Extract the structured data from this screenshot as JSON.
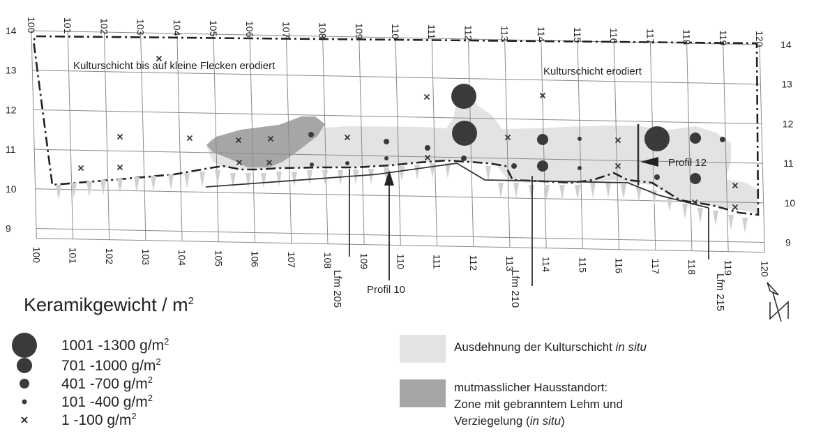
{
  "grid": {
    "top_labels": [
      "100",
      "101",
      "102",
      "103",
      "104",
      "105",
      "106",
      "107",
      "108",
      "109",
      "110",
      "111",
      "112",
      "113",
      "114",
      "115",
      "116",
      "117",
      "118",
      "119",
      "120"
    ],
    "bottom_labels": [
      "100",
      "101",
      "102",
      "103",
      "104",
      "105",
      "106",
      "107",
      "108",
      "109",
      "110",
      "111",
      "112",
      "113",
      "114",
      "115",
      "116",
      "117",
      "118",
      "119",
      "120"
    ],
    "left_labels": [
      "14",
      "13",
      "12",
      "11",
      "10",
      "9"
    ],
    "right_labels": [
      "14",
      "13",
      "12",
      "11",
      "10",
      "9"
    ]
  },
  "annotations": {
    "eroded_spots": "Kulturschicht bis auf kleine Flecken erodiert",
    "eroded": "Kulturschicht erodiert",
    "profil12": "Profil 12",
    "profil10": "Profil 10",
    "lfm205": "Lfm 205",
    "lfm210": "Lfm 210",
    "lfm215": "Lfm 215"
  },
  "legend": {
    "title": "Keramikgewicht / m",
    "title_sup": "2",
    "classes": [
      {
        "label": "1001 -1300 g/m",
        "sup": "2",
        "symbol": "circle-xl"
      },
      {
        "label": "701 -1000 g/m",
        "sup": "2",
        "symbol": "circle-l"
      },
      {
        "label": "401 -700 g/m",
        "sup": "2",
        "symbol": "circle-m"
      },
      {
        "label": "101 -400 g/m",
        "sup": "2",
        "symbol": "circle-s"
      },
      {
        "label": "1 -100 g/m",
        "sup": "2",
        "symbol": "cross"
      }
    ],
    "areas": [
      {
        "text_plain": "Ausdehnung der Kulturschicht ",
        "text_italic": "in situ",
        "color": "#e3e3e3"
      },
      {
        "line1": "mutmasslicher Hausstandort:",
        "line2": "Zone mit gebranntem Lehm und",
        "line3_plain": "Verziegelung (",
        "line3_italic": "in situ",
        "line3_end": ")",
        "color": "#a6a6a6"
      }
    ]
  },
  "colors": {
    "culture_layer": "#e3e3e3",
    "house_zone": "#a6a6a6",
    "symbol": "#3a3a3a",
    "grid": "#8a8a8a"
  },
  "icons": {
    "north_arrow": "north-arrow-icon"
  }
}
